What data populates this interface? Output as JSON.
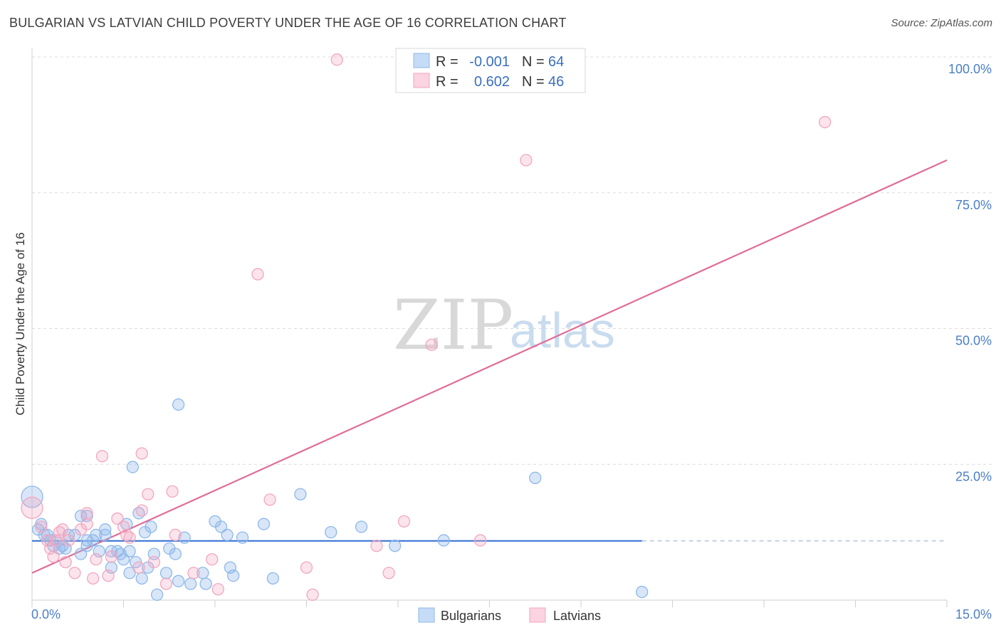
{
  "header": {
    "title": "BULGARIAN VS LATVIAN CHILD POVERTY UNDER THE AGE OF 16 CORRELATION CHART",
    "source": "Source: ZipAtlas.com"
  },
  "watermark": {
    "zip": "ZIP",
    "atlas": "atlas"
  },
  "legend": {
    "rows": [
      {
        "r_label": "R =",
        "r_value": "-0.001",
        "n_label": "N =",
        "n_value": "64",
        "color": "#8fb8ea"
      },
      {
        "r_label": "R =",
        "r_value": "0.602",
        "n_label": "N =",
        "n_value": "46",
        "color": "#f2a6c0"
      }
    ]
  },
  "bottom_legend": [
    {
      "label": "Bulgarians",
      "color": "#8fb8ea"
    },
    {
      "label": "Latvians",
      "color": "#f2a6c0"
    }
  ],
  "chart_data": {
    "type": "scatter",
    "title": "BULGARIAN VS LATVIAN CHILD POVERTY UNDER THE AGE OF 16 CORRELATION CHART",
    "ylabel": "Child Poverty Under the Age of 16",
    "xlim": [
      0,
      15
    ],
    "ylim": [
      0,
      100
    ],
    "x_tick_labels": [
      "0.0%",
      "15.0%"
    ],
    "y_ticks": [
      25,
      50,
      75,
      100
    ],
    "y_tick_labels": [
      "25.0%",
      "50.0%",
      "75.0%",
      "100.0%"
    ],
    "grid": true,
    "legend_position": "top-center",
    "series": [
      {
        "name": "Bulgarians",
        "color": "#8fb8ea",
        "line_color": "#3a76d4",
        "trend": {
          "x": [
            0,
            10.0
          ],
          "y": [
            10.9,
            10.9
          ],
          "dashed_to": 15
        },
        "points": [
          [
            0.0,
            19
          ],
          [
            0.1,
            13
          ],
          [
            0.2,
            12
          ],
          [
            0.25,
            12
          ],
          [
            0.3,
            11
          ],
          [
            0.35,
            10
          ],
          [
            0.4,
            11
          ],
          [
            0.45,
            9.5
          ],
          [
            0.5,
            10
          ],
          [
            0.55,
            9.5
          ],
          [
            0.6,
            12
          ],
          [
            0.7,
            12
          ],
          [
            0.8,
            8.5
          ],
          [
            0.8,
            15.5
          ],
          [
            0.9,
            15.5
          ],
          [
            0.9,
            11
          ],
          [
            1.0,
            11
          ],
          [
            1.05,
            12
          ],
          [
            1.1,
            9
          ],
          [
            1.2,
            12
          ],
          [
            1.2,
            13
          ],
          [
            1.3,
            9
          ],
          [
            1.3,
            6
          ],
          [
            1.4,
            9
          ],
          [
            1.45,
            8.5
          ],
          [
            1.5,
            7.5
          ],
          [
            1.6,
            5
          ],
          [
            1.6,
            9
          ],
          [
            1.65,
            24.5
          ],
          [
            1.7,
            7
          ],
          [
            1.75,
            16
          ],
          [
            1.8,
            4
          ],
          [
            1.85,
            12.5
          ],
          [
            1.9,
            6
          ],
          [
            1.95,
            13.5
          ],
          [
            2.0,
            8.5
          ],
          [
            2.05,
            1
          ],
          [
            2.2,
            5
          ],
          [
            2.25,
            9.5
          ],
          [
            2.35,
            8.5
          ],
          [
            2.4,
            3.5
          ],
          [
            2.4,
            36
          ],
          [
            2.5,
            11.5
          ],
          [
            2.8,
            5
          ],
          [
            2.85,
            3
          ],
          [
            3.0,
            14.5
          ],
          [
            3.1,
            13.5
          ],
          [
            3.2,
            12
          ],
          [
            3.25,
            6
          ],
          [
            3.3,
            4.5
          ],
          [
            3.45,
            11.5
          ],
          [
            3.8,
            14
          ],
          [
            3.95,
            4
          ],
          [
            4.4,
            19.5
          ],
          [
            4.9,
            12.5
          ],
          [
            5.4,
            13.5
          ],
          [
            5.95,
            10
          ],
          [
            6.75,
            11
          ],
          [
            8.25,
            22.5
          ],
          [
            10.0,
            1.5
          ],
          [
            0.15,
            14
          ],
          [
            0.9,
            10
          ],
          [
            1.55,
            14
          ],
          [
            2.6,
            3
          ]
        ]
      },
      {
        "name": "Latvians",
        "color": "#f2a6c0",
        "line_color": "#e06b97",
        "trend": {
          "x": [
            0,
            15
          ],
          "y": [
            5,
            81
          ]
        },
        "points": [
          [
            0.0,
            17
          ],
          [
            0.15,
            13.5
          ],
          [
            0.25,
            11
          ],
          [
            0.3,
            9.5
          ],
          [
            0.35,
            8
          ],
          [
            0.4,
            11
          ],
          [
            0.45,
            12.5
          ],
          [
            0.5,
            13
          ],
          [
            0.55,
            7
          ],
          [
            0.6,
            11
          ],
          [
            0.7,
            5
          ],
          [
            0.8,
            13
          ],
          [
            0.9,
            16
          ],
          [
            0.9,
            14
          ],
          [
            1.0,
            4
          ],
          [
            1.05,
            7.5
          ],
          [
            1.15,
            26.5
          ],
          [
            1.25,
            4.5
          ],
          [
            1.3,
            8
          ],
          [
            1.4,
            15
          ],
          [
            1.5,
            13.5
          ],
          [
            1.55,
            12
          ],
          [
            1.6,
            11.5
          ],
          [
            1.75,
            6
          ],
          [
            1.8,
            16.5
          ],
          [
            1.8,
            27
          ],
          [
            1.9,
            19.5
          ],
          [
            2.0,
            7
          ],
          [
            2.2,
            3
          ],
          [
            2.3,
            20
          ],
          [
            2.35,
            12
          ],
          [
            2.65,
            5
          ],
          [
            2.95,
            7.5
          ],
          [
            3.05,
            2
          ],
          [
            3.7,
            60
          ],
          [
            3.9,
            18.5
          ],
          [
            4.5,
            6
          ],
          [
            4.6,
            1
          ],
          [
            5.0,
            99.5
          ],
          [
            5.65,
            10
          ],
          [
            5.85,
            5
          ],
          [
            6.1,
            14.5
          ],
          [
            6.55,
            47
          ],
          [
            7.35,
            11
          ],
          [
            8.1,
            81
          ],
          [
            13.0,
            88
          ]
        ]
      }
    ]
  }
}
